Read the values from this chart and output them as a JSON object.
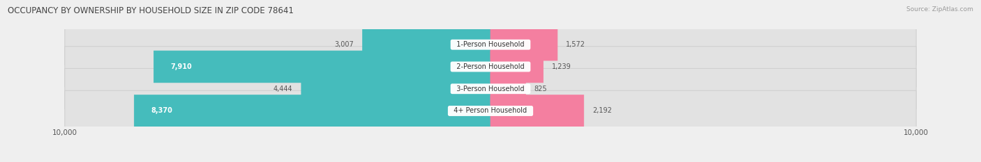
{
  "title": "OCCUPANCY BY OWNERSHIP BY HOUSEHOLD SIZE IN ZIP CODE 78641",
  "source": "Source: ZipAtlas.com",
  "categories": [
    "1-Person Household",
    "2-Person Household",
    "3-Person Household",
    "4+ Person Household"
  ],
  "owner_values": [
    3007,
    7910,
    4444,
    8370
  ],
  "renter_values": [
    1572,
    1239,
    825,
    2192
  ],
  "owner_color": "#45BCBC",
  "renter_color": "#F47FA0",
  "axis_max": 10000,
  "bg_color": "#efefef",
  "bar_bg_color": "#e2e2e2",
  "bar_border_color": "#d0d0d0",
  "label_color": "#555555",
  "title_color": "#444444",
  "bar_height": 0.72,
  "figsize": [
    14.06,
    2.33
  ],
  "dpi": 100
}
